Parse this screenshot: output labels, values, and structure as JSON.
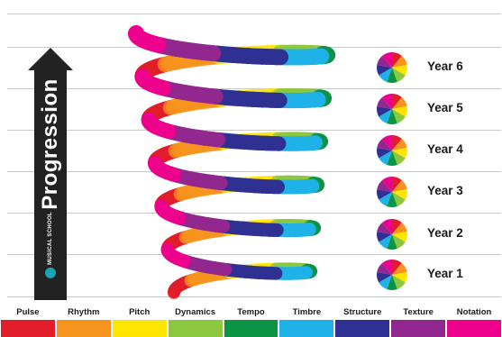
{
  "progression": {
    "label": "Progression",
    "logo_text": "MUSICAL SCHOOL"
  },
  "years": [
    {
      "label": "Year 6"
    },
    {
      "label": "Year 5"
    },
    {
      "label": "Year 4"
    },
    {
      "label": "Year 3"
    },
    {
      "label": "Year 2"
    },
    {
      "label": "Year 1"
    }
  ],
  "elements": [
    {
      "label": "Pulse",
      "color": "#e11d2a"
    },
    {
      "label": "Rhythm",
      "color": "#f7941d"
    },
    {
      "label": "Pitch",
      "color": "#ffe600"
    },
    {
      "label": "Dynamics",
      "color": "#8dc63f"
    },
    {
      "label": "Tempo",
      "color": "#0b9444"
    },
    {
      "label": "Timbre",
      "color": "#1fb2e8"
    },
    {
      "label": "Structure",
      "color": "#2e3192"
    },
    {
      "label": "Texture",
      "color": "#92278f"
    },
    {
      "label": "Notation",
      "color": "#ec008c"
    }
  ]
}
